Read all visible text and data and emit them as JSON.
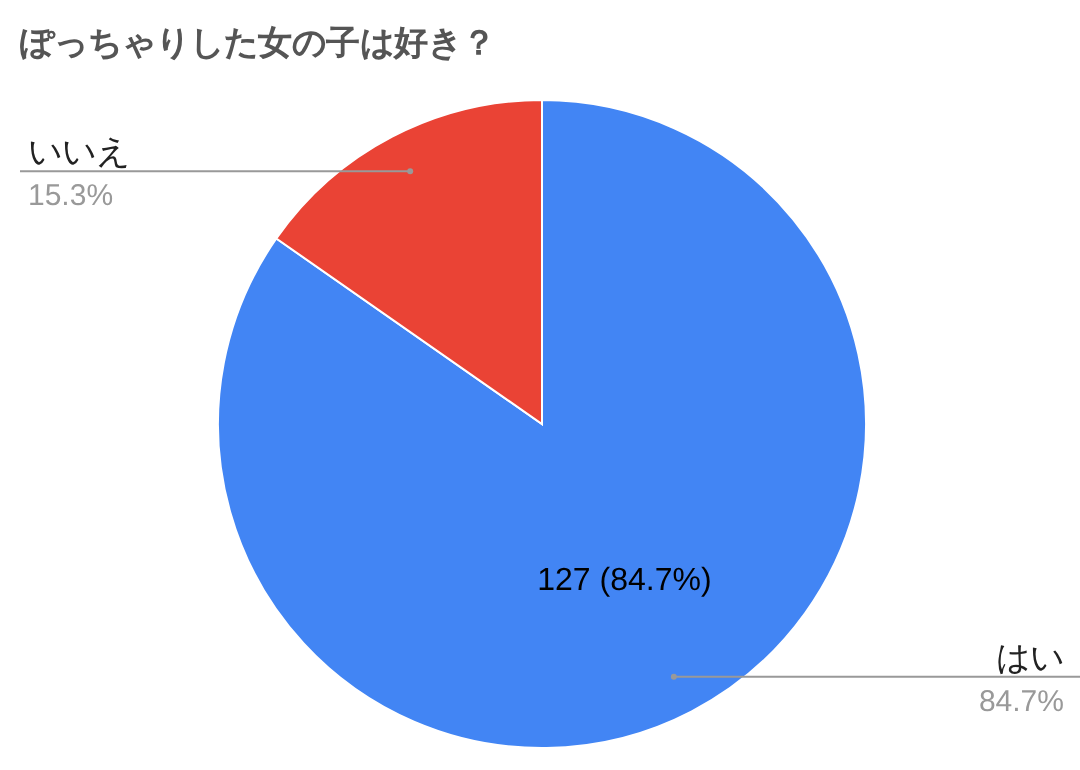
{
  "chart_data": {
    "type": "pie",
    "title": "ぽっちゃりした女の子は好き？",
    "categories": [
      "はい",
      "いいえ"
    ],
    "values": [
      84.7,
      15.3
    ],
    "colors": [
      "#4285f4",
      "#ea4335"
    ],
    "value_labels": [
      "84.7%",
      "15.3%"
    ],
    "annotations": [
      "127 (84.7%)"
    ]
  }
}
